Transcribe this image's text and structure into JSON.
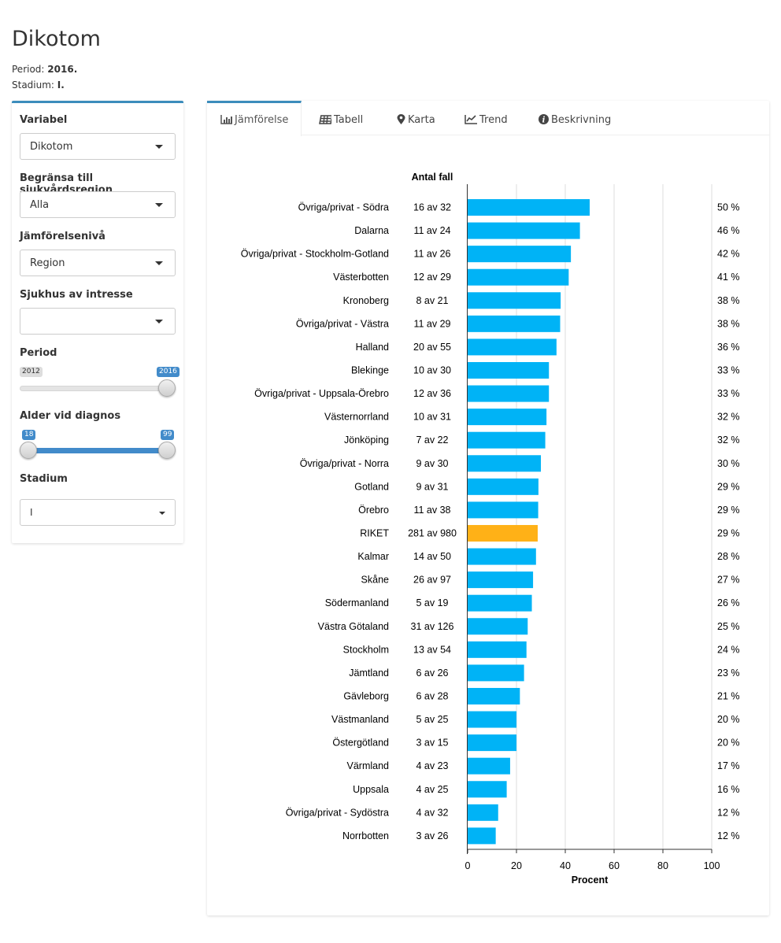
{
  "page": {
    "title": "Dikotom",
    "period_label": "Period:",
    "period_value": "2016.",
    "stadium_label": "Stadium:",
    "stadium_value": "I."
  },
  "sidebar": {
    "variabel": {
      "label": "Variabel",
      "value": "Dikotom"
    },
    "region": {
      "label": "Begränsa till sjukvårdsregion",
      "value": "Alla"
    },
    "level": {
      "label": "Jämförelsenivå",
      "value": "Region"
    },
    "hospital": {
      "label": "Sjukhus av intresse",
      "value": ""
    },
    "period": {
      "label": "Period",
      "min": "2012",
      "max": "2016",
      "selected": 2016,
      "range_min": 2012,
      "range_max": 2016
    },
    "age": {
      "label": "Alder vid diagnos",
      "from": "18",
      "to": "99",
      "from_value": 18,
      "to_value": 99,
      "range_min": 18,
      "range_max": 99
    },
    "stadium": {
      "label": "Stadium",
      "value": "I"
    }
  },
  "tabs": [
    {
      "label": "Jämförelse",
      "icon": "bar-chart-icon",
      "active": true
    },
    {
      "label": "Tabell",
      "icon": "table-icon",
      "active": false
    },
    {
      "label": "Karta",
      "icon": "map-marker-icon",
      "active": false
    },
    {
      "label": "Trend",
      "icon": "line-chart-icon",
      "active": false
    },
    {
      "label": "Beskrivning",
      "icon": "info-icon",
      "active": false
    }
  ],
  "colors": {
    "bar": "#00b3f6",
    "highlight": "#ffb117",
    "accent": "#3c8dbc"
  },
  "chart_data": {
    "type": "bar",
    "orientation": "horizontal",
    "count_header": "Antal fall",
    "xlabel": "Procent",
    "xlim": [
      0,
      100
    ],
    "xticks": [
      "0",
      "20",
      "40",
      "60",
      "80",
      "100"
    ],
    "grid": true,
    "highlight_category": "RIKET",
    "rows": [
      {
        "category": "Övriga/privat - Södra",
        "count": "16 av 32",
        "value": 50,
        "label": "50 %"
      },
      {
        "category": "Dalarna",
        "count": "11 av 24",
        "value": 46,
        "label": "46 %"
      },
      {
        "category": "Övriga/privat - Stockholm-Gotland",
        "count": "11 av 26",
        "value": 42.3,
        "label": "42 %"
      },
      {
        "category": "Västerbotten",
        "count": "12 av 29",
        "value": 41.4,
        "label": "41 %"
      },
      {
        "category": "Kronoberg",
        "count": "8 av 21",
        "value": 38.1,
        "label": "38 %"
      },
      {
        "category": "Övriga/privat - Västra",
        "count": "11 av 29",
        "value": 37.9,
        "label": "38 %"
      },
      {
        "category": "Halland",
        "count": "20 av 55",
        "value": 36.4,
        "label": "36 %"
      },
      {
        "category": "Blekinge",
        "count": "10 av 30",
        "value": 33.3,
        "label": "33 %"
      },
      {
        "category": "Övriga/privat - Uppsala-Örebro",
        "count": "12 av 36",
        "value": 33.3,
        "label": "33 %"
      },
      {
        "category": "Västernorrland",
        "count": "10 av 31",
        "value": 32.3,
        "label": "32 %"
      },
      {
        "category": "Jönköping",
        "count": "7 av 22",
        "value": 31.8,
        "label": "32 %"
      },
      {
        "category": "Övriga/privat - Norra",
        "count": "9 av 30",
        "value": 30,
        "label": "30 %"
      },
      {
        "category": "Gotland",
        "count": "9 av 31",
        "value": 29,
        "label": "29 %"
      },
      {
        "category": "Örebro",
        "count": "11 av 38",
        "value": 28.9,
        "label": "29 %"
      },
      {
        "category": "RIKET",
        "count": "281 av 980",
        "value": 28.7,
        "label": "29 %"
      },
      {
        "category": "Kalmar",
        "count": "14 av 50",
        "value": 28,
        "label": "28 %"
      },
      {
        "category": "Skåne",
        "count": "26 av 97",
        "value": 26.8,
        "label": "27 %"
      },
      {
        "category": "Södermanland",
        "count": "5 av 19",
        "value": 26.3,
        "label": "26 %"
      },
      {
        "category": "Västra Götaland",
        "count": "31 av 126",
        "value": 24.6,
        "label": "25 %"
      },
      {
        "category": "Stockholm",
        "count": "13 av 54",
        "value": 24.1,
        "label": "24 %"
      },
      {
        "category": "Jämtland",
        "count": "6 av 26",
        "value": 23.1,
        "label": "23 %"
      },
      {
        "category": "Gävleborg",
        "count": "6 av 28",
        "value": 21.4,
        "label": "21 %"
      },
      {
        "category": "Västmanland",
        "count": "5 av 25",
        "value": 20,
        "label": "20 %"
      },
      {
        "category": "Östergötland",
        "count": "3 av 15",
        "value": 20,
        "label": "20 %"
      },
      {
        "category": "Värmland",
        "count": "4 av 23",
        "value": 17.4,
        "label": "17 %"
      },
      {
        "category": "Uppsala",
        "count": "4 av 25",
        "value": 16,
        "label": "16 %"
      },
      {
        "category": "Övriga/privat - Sydöstra",
        "count": "4 av 32",
        "value": 12.5,
        "label": "12 %"
      },
      {
        "category": "Norrbotten",
        "count": "3 av 26",
        "value": 11.5,
        "label": "12 %"
      }
    ]
  }
}
